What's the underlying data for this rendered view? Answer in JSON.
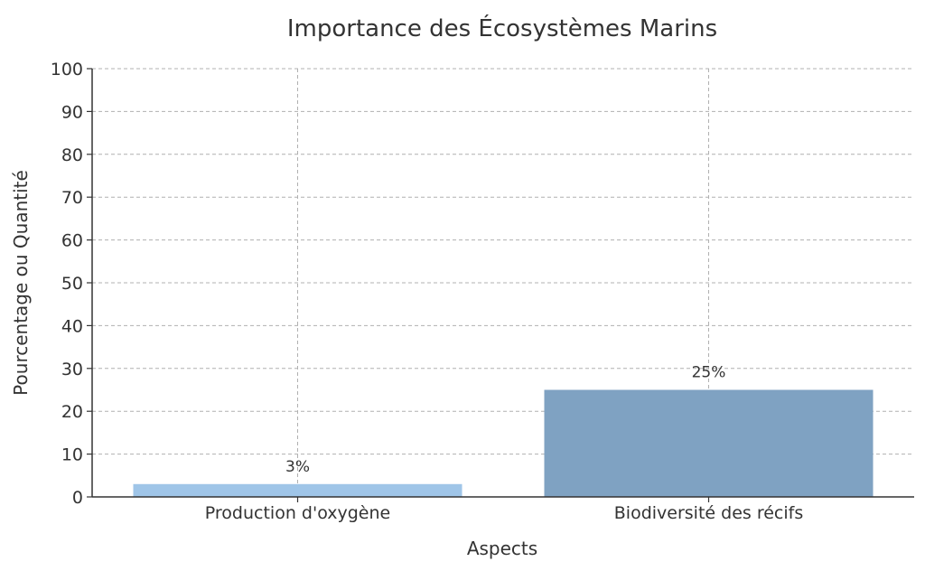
{
  "chart_data": {
    "type": "bar",
    "title": "Importance des Écosystèmes Marins",
    "xlabel": "Aspects",
    "ylabel": "Pourcentage ou Quantité",
    "categories": [
      "Production d'oxygène",
      "Biodiversité des récifs"
    ],
    "values": [
      3,
      25
    ],
    "value_labels": [
      "3%",
      "25%"
    ],
    "colors": [
      "#9fc5e8",
      "#7fa2c2"
    ],
    "ylim": [
      0,
      100
    ],
    "yticks": [
      0,
      10,
      20,
      30,
      40,
      50,
      60,
      70,
      80,
      90,
      100
    ],
    "grid": true,
    "legend": "none"
  }
}
